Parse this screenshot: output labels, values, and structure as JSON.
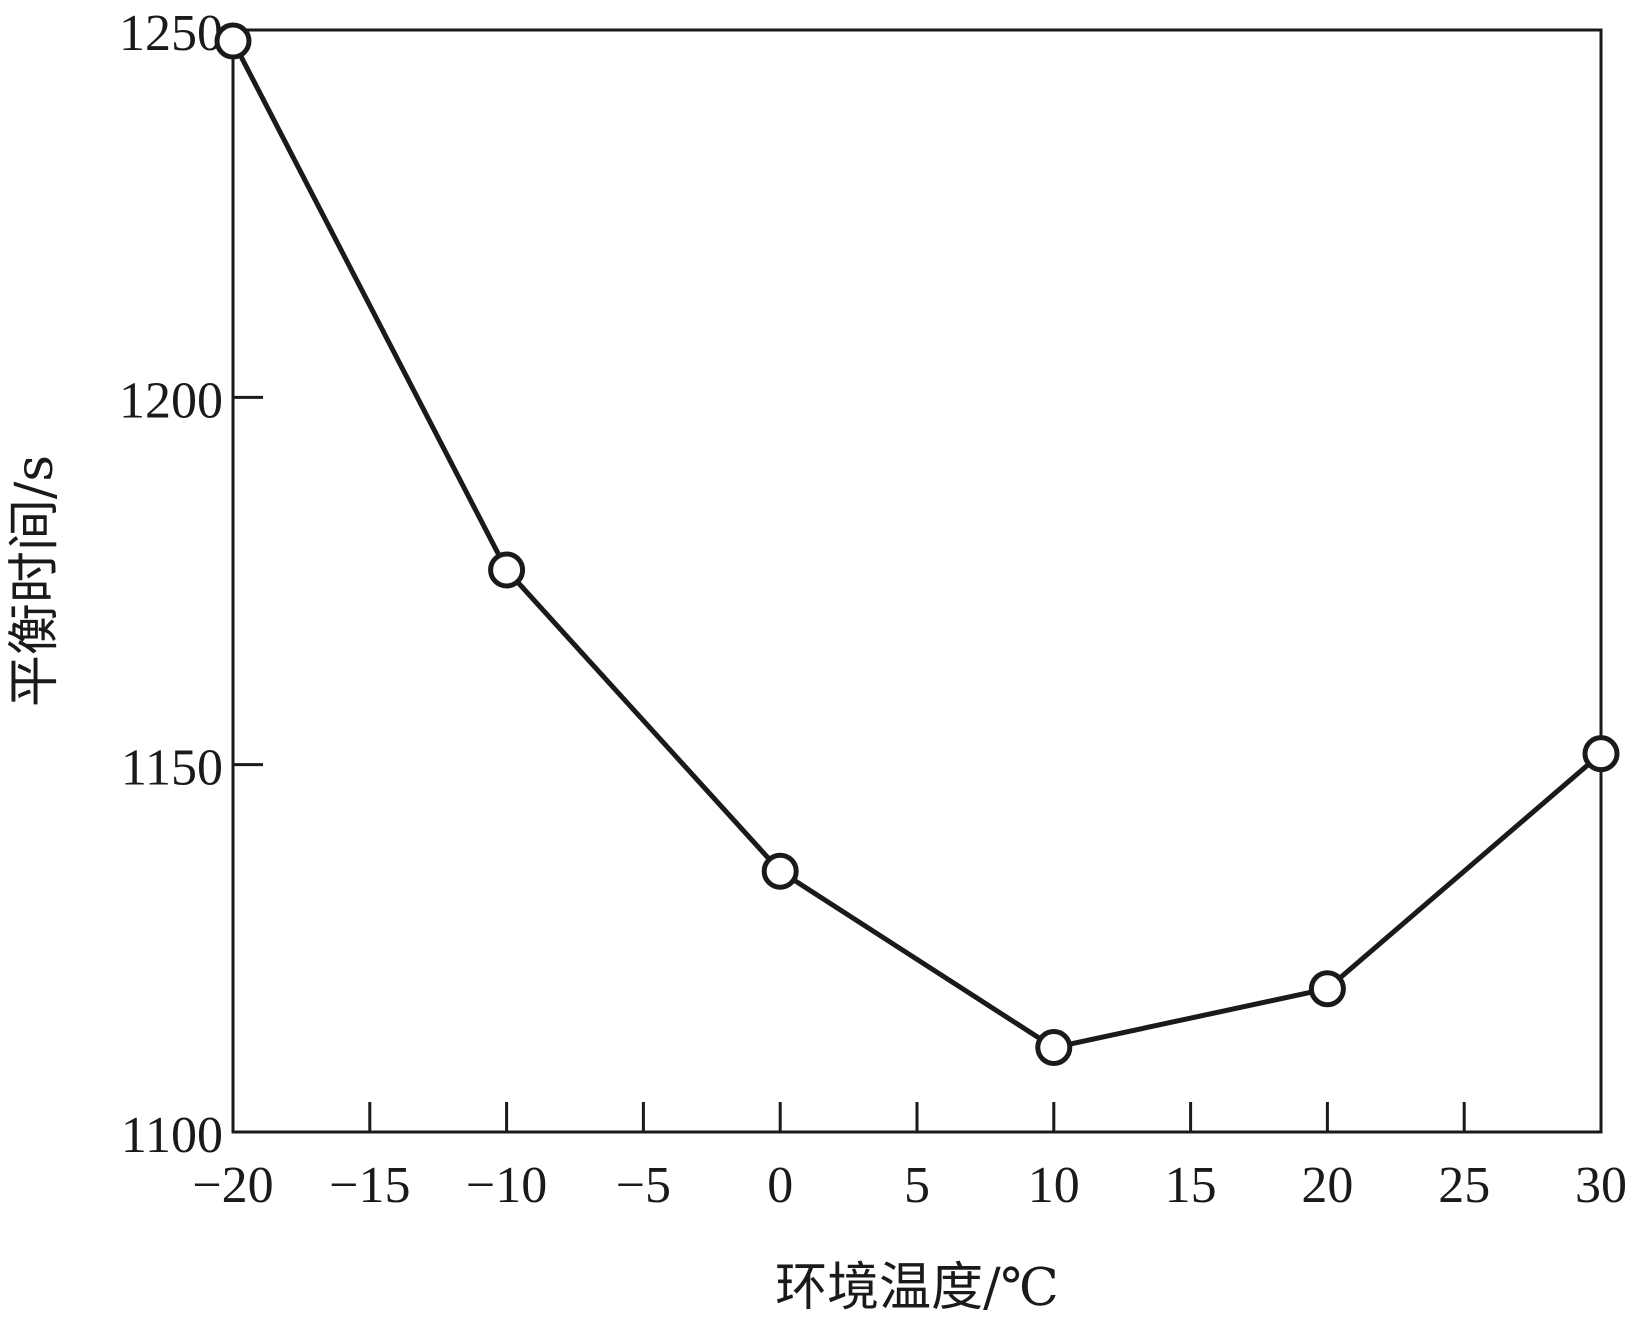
{
  "chart_data": {
    "type": "line",
    "title": "",
    "xlabel": "环境温度/℃",
    "ylabel": "平衡时间/s",
    "xlim": [
      -20,
      30
    ],
    "ylim": [
      1100,
      1250
    ],
    "xticks": [
      -20,
      -15,
      -10,
      -5,
      0,
      5,
      10,
      15,
      20,
      25,
      30
    ],
    "xtick_labels": [
      "−20",
      "−15",
      "−10",
      "−5",
      "0",
      "5",
      "10",
      "15",
      "20",
      "25",
      "30"
    ],
    "yticks": [
      1100,
      1150,
      1200,
      1250
    ],
    "ytick_labels": [
      "1100",
      "1150",
      "1200",
      "1250"
    ],
    "grid": false,
    "legend": "none",
    "marker": "open-circle",
    "line_color": "#1a1a1a",
    "series": [
      {
        "x": [
          -20,
          -10,
          0,
          10,
          20,
          30
        ],
        "y": [
          1248.5,
          1176.5,
          1135.5,
          1111.5,
          1119.5,
          1151.5
        ]
      }
    ]
  }
}
